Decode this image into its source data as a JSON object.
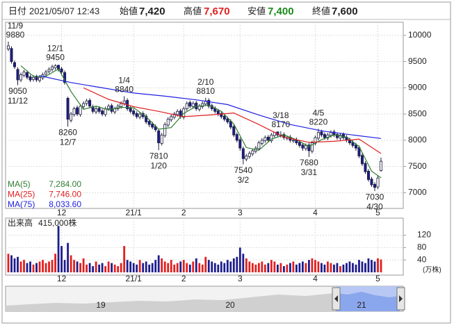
{
  "header": {
    "date_label": "日付",
    "date": "2021/05/07 12:43",
    "open_label": "始値",
    "open": "7,420",
    "high_label": "高値",
    "high": "7,670",
    "low_label": "安値",
    "low": "7,400",
    "close_label": "終値",
    "close": "7,600"
  },
  "chart_data": [
    {
      "type": "candlestick",
      "categories": [
        null,
        null,
        null,
        null,
        null,
        null,
        null,
        null,
        null,
        null,
        null,
        null,
        null,
        null,
        null,
        null,
        null,
        "12",
        null,
        null,
        null,
        null,
        null,
        null,
        null,
        null,
        null,
        null,
        null,
        null,
        null,
        null,
        null,
        null,
        null,
        null,
        null,
        null,
        null,
        null,
        "21/1",
        null,
        null,
        null,
        null,
        null,
        null,
        null,
        null,
        null,
        null,
        null,
        null,
        null,
        null,
        null,
        "2",
        null,
        null,
        null,
        null,
        null,
        null,
        null,
        null,
        null,
        null,
        null,
        null,
        null,
        null,
        null,
        null,
        null,
        "3",
        null,
        null,
        null,
        null,
        null,
        null,
        null,
        null,
        null,
        null,
        null,
        null,
        null,
        null,
        null,
        null,
        null,
        null,
        null,
        null,
        null,
        null,
        null,
        "4",
        null,
        null,
        null,
        null,
        null,
        null,
        null,
        null,
        null,
        null,
        null,
        null,
        null,
        null,
        null,
        null,
        null,
        null,
        null,
        "5",
        null
      ],
      "ohlc": {
        "open": [
          9740,
          9750,
          9480,
          9350,
          9150,
          9240,
          9290,
          9210,
          9160,
          9210,
          9140,
          9190,
          9260,
          9310,
          9350,
          9380,
          9430,
          9360,
          9290,
          8800,
          8380,
          8490,
          8620,
          8490,
          8640,
          8700,
          8760,
          8640,
          8540,
          8610,
          8560,
          8490,
          8600,
          8660,
          8540,
          8600,
          8640,
          8700,
          8760,
          8610,
          8560,
          8510,
          8440,
          8510,
          8460,
          8360,
          8310,
          8260,
          8180,
          7940,
          8090,
          8290,
          8390,
          8440,
          8490,
          8560,
          8440,
          8600,
          8720,
          8640,
          8710,
          8590,
          8640,
          8690,
          8760,
          8660,
          8610,
          8560,
          8510,
          8460,
          8410,
          8360,
          8260,
          8110,
          8010,
          7840,
          7640,
          7690,
          7740,
          7790,
          7840,
          7940,
          7990,
          8060,
          7990,
          8090,
          8160,
          8090,
          8110,
          8040,
          8060,
          7990,
          8010,
          7960,
          7910,
          7840,
          7910,
          7790,
          7940,
          8040,
          8160,
          8110,
          8040,
          8090,
          8160,
          8110,
          8040,
          8110,
          8060,
          8010,
          7960,
          7910,
          7860,
          7710,
          7560,
          7410,
          7260,
          7160,
          7110,
          7420
        ],
        "high": [
          9880,
          9790,
          9520,
          9390,
          9290,
          9340,
          9330,
          9250,
          9240,
          9250,
          9240,
          9290,
          9340,
          9390,
          9440,
          9450,
          9440,
          9400,
          9330,
          8830,
          8540,
          8640,
          8660,
          8690,
          8740,
          8790,
          8800,
          8680,
          8640,
          8650,
          8600,
          8640,
          8690,
          8700,
          8640,
          8690,
          8740,
          8840,
          8800,
          8650,
          8600,
          8550,
          8540,
          8550,
          8500,
          8400,
          8350,
          8300,
          8210,
          8140,
          8340,
          8440,
          8490,
          8540,
          8590,
          8600,
          8640,
          8740,
          8760,
          8740,
          8750,
          8690,
          8740,
          8810,
          8800,
          8700,
          8650,
          8600,
          8550,
          8500,
          8450,
          8400,
          8300,
          8150,
          8050,
          7880,
          7740,
          7790,
          7840,
          7890,
          7990,
          8040,
          8090,
          8100,
          8140,
          8160,
          8165,
          8170,
          8150,
          8090,
          8100,
          8040,
          8050,
          8000,
          7950,
          7940,
          7950,
          7990,
          8090,
          8220,
          8200,
          8150,
          8140,
          8190,
          8200,
          8150,
          8140,
          8150,
          8100,
          8050,
          8000,
          7950,
          7900,
          7750,
          7600,
          7450,
          7300,
          7200,
          7320,
          7670
        ],
        "low": [
          9700,
          9460,
          9360,
          9050,
          9110,
          9200,
          9160,
          9110,
          9120,
          9110,
          9100,
          9150,
          9220,
          9270,
          9310,
          9340,
          9310,
          9260,
          9060,
          8260,
          8340,
          8450,
          8460,
          8450,
          8600,
          8660,
          8610,
          8510,
          8500,
          8510,
          8460,
          8450,
          8560,
          8510,
          8500,
          8560,
          8600,
          8660,
          8560,
          8510,
          8460,
          8410,
          8400,
          8410,
          8310,
          8250,
          8210,
          8160,
          7810,
          7900,
          8050,
          8250,
          8350,
          8400,
          8450,
          8410,
          8400,
          8560,
          8610,
          8600,
          8560,
          8550,
          8600,
          8650,
          8610,
          8560,
          8510,
          8460,
          8410,
          8360,
          8310,
          8210,
          8060,
          7960,
          7800,
          7540,
          7600,
          7650,
          7700,
          7750,
          7800,
          7900,
          7950,
          7960,
          7950,
          8050,
          8060,
          8050,
          8010,
          8000,
          7960,
          7950,
          7910,
          7860,
          7800,
          7800,
          7680,
          7750,
          7900,
          8000,
          8060,
          8010,
          8000,
          8050,
          8060,
          8010,
          8000,
          8010,
          7960,
          7910,
          7860,
          7800,
          7660,
          7510,
          7360,
          7210,
          7110,
          7030,
          7070,
          7400
        ],
        "close": [
          9800,
          9500,
          9400,
          9150,
          9250,
          9300,
          9200,
          9150,
          9200,
          9150,
          9200,
          9250,
          9300,
          9350,
          9400,
          9420,
          9350,
          9300,
          9100,
          8400,
          8500,
          8600,
          8500,
          8650,
          8700,
          8750,
          8650,
          8550,
          8600,
          8550,
          8500,
          8600,
          8650,
          8550,
          8600,
          8650,
          8700,
          8750,
          8600,
          8550,
          8500,
          8450,
          8500,
          8450,
          8350,
          8300,
          8250,
          8200,
          7950,
          8100,
          8300,
          8400,
          8450,
          8500,
          8550,
          8450,
          8600,
          8700,
          8650,
          8700,
          8600,
          8650,
          8700,
          8750,
          8650,
          8600,
          8550,
          8500,
          8450,
          8400,
          8350,
          8250,
          8100,
          8000,
          7850,
          7650,
          7700,
          7750,
          7800,
          7850,
          7950,
          8000,
          8050,
          8000,
          8100,
          8150,
          8100,
          8100,
          8050,
          8050,
          8000,
          8000,
          7950,
          7900,
          7850,
          7900,
          7800,
          7950,
          8050,
          8150,
          8100,
          8050,
          8100,
          8150,
          8100,
          8050,
          8100,
          8050,
          8000,
          7950,
          7900,
          7850,
          7700,
          7550,
          7400,
          7250,
          7150,
          7100,
          7280,
          7600
        ]
      },
      "up_color": "#ffffff",
      "down_color": "#1c1c8c",
      "series": [
        {
          "name": "MA(5)",
          "color": "#2e7d32",
          "x": [
            4,
            8,
            12,
            16,
            20,
            24,
            28,
            32,
            36,
            40,
            44,
            48,
            52,
            56,
            60,
            64,
            68,
            72,
            76,
            80,
            84,
            88,
            92,
            96,
            100,
            104,
            108,
            112,
            116,
            119
          ],
          "values": [
            9420,
            9220,
            9220,
            9360,
            8930,
            8590,
            8650,
            8580,
            8630,
            8620,
            8450,
            8210,
            8240,
            8510,
            8650,
            8670,
            8550,
            8310,
            7860,
            7810,
            8020,
            8100,
            8010,
            7880,
            8010,
            8100,
            8060,
            7880,
            7410,
            7284
          ],
          "value_labels": [
            null,
            null,
            null,
            null,
            null,
            null,
            null,
            null,
            null,
            null,
            null,
            null,
            null,
            null,
            null,
            null,
            null,
            null,
            null,
            null,
            null,
            null,
            null,
            null,
            null,
            null,
            null,
            null,
            null,
            "7,284.00"
          ]
        },
        {
          "name": "MA(25)",
          "color": "#e02020",
          "x": [
            24,
            32,
            40,
            48,
            56,
            64,
            72,
            80,
            88,
            96,
            104,
            112,
            119
          ],
          "values": [
            9000,
            8780,
            8640,
            8550,
            8450,
            8480,
            8520,
            8300,
            8060,
            7960,
            7980,
            8020,
            7746
          ],
          "value_labels": [
            null,
            null,
            null,
            null,
            null,
            null,
            null,
            null,
            null,
            null,
            null,
            null,
            "7,746.00"
          ]
        },
        {
          "name": "MA(75)",
          "color": "#2020e0",
          "x": [
            10,
            20,
            30,
            40,
            50,
            60,
            70,
            80,
            90,
            100,
            110,
            119
          ],
          "values": [
            9230,
            9100,
            9000,
            8900,
            8840,
            8770,
            8680,
            8480,
            8300,
            8180,
            8100,
            8033.6
          ],
          "value_labels": [
            null,
            null,
            null,
            null,
            null,
            null,
            null,
            null,
            null,
            null,
            null,
            "8,033.60"
          ]
        }
      ],
      "annotations": [
        {
          "date": "11/9",
          "value": 9880
        },
        {
          "date": "11/12",
          "value": 9050
        },
        {
          "date": "12/1",
          "value": 9450
        },
        {
          "date": "12/7",
          "value": 8260
        },
        {
          "date": "1/4",
          "value": 8840
        },
        {
          "date": "1/20",
          "value": 7810
        },
        {
          "date": "2/10",
          "value": 8810
        },
        {
          "date": "3/2",
          "value": 7540
        },
        {
          "date": "3/18",
          "value": 8170
        },
        {
          "date": "3/31",
          "value": 7680
        },
        {
          "date": "4/5",
          "value": 8220
        },
        {
          "date": "4/30",
          "value": 7030
        }
      ],
      "ylim": [
        6700,
        10250
      ],
      "yticks": [
        7000,
        7500,
        8000,
        8500,
        9000,
        9500,
        10000
      ],
      "grid": true
    },
    {
      "type": "bar",
      "title": "出来高",
      "unit": "(万株)",
      "categories": [
        null,
        null,
        null,
        null,
        null,
        null,
        null,
        null,
        null,
        null,
        null,
        null,
        null,
        null,
        null,
        null,
        null,
        "12",
        null,
        null,
        null,
        null,
        null,
        null,
        null,
        null,
        null,
        null,
        null,
        null,
        null,
        null,
        null,
        null,
        null,
        null,
        null,
        null,
        null,
        null,
        "21/1",
        null,
        null,
        null,
        null,
        null,
        null,
        null,
        null,
        null,
        null,
        null,
        null,
        null,
        null,
        null,
        "2",
        null,
        null,
        null,
        null,
        null,
        null,
        null,
        null,
        null,
        null,
        null,
        null,
        null,
        null,
        null,
        null,
        null,
        "3",
        null,
        null,
        null,
        null,
        null,
        null,
        null,
        null,
        null,
        null,
        null,
        null,
        null,
        null,
        null,
        null,
        null,
        null,
        null,
        null,
        null,
        null,
        null,
        "4",
        null,
        null,
        null,
        null,
        null,
        null,
        null,
        null,
        null,
        null,
        null,
        null,
        null,
        null,
        null,
        null,
        null,
        null,
        null,
        "5",
        null
      ],
      "values": [
        60,
        55,
        45,
        50,
        35,
        40,
        30,
        35,
        25,
        30,
        35,
        40,
        30,
        35,
        40,
        60,
        150,
        85,
        40,
        95,
        55,
        40,
        35,
        30,
        45,
        25,
        30,
        20,
        35,
        25,
        30,
        20,
        35,
        30,
        25,
        20,
        30,
        85,
        40,
        35,
        30,
        25,
        40,
        30,
        35,
        25,
        30,
        40,
        55,
        45,
        35,
        30,
        40,
        25,
        30,
        35,
        40,
        30,
        25,
        35,
        45,
        30,
        25,
        50,
        40,
        35,
        30,
        25,
        35,
        30,
        40,
        35,
        45,
        50,
        80,
        60,
        45,
        35,
        30,
        25,
        30,
        35,
        25,
        30,
        40,
        35,
        25,
        30,
        20,
        25,
        30,
        35,
        25,
        30,
        35,
        30,
        40,
        45,
        40,
        35,
        30,
        25,
        35,
        30,
        25,
        30,
        20,
        25,
        30,
        35,
        30,
        25,
        40,
        35,
        30,
        45,
        40,
        35,
        45,
        41.5
      ],
      "value_labels": [
        null,
        null,
        null,
        null,
        null,
        null,
        null,
        null,
        null,
        null,
        null,
        null,
        null,
        null,
        null,
        null,
        null,
        null,
        null,
        null,
        null,
        null,
        null,
        null,
        null,
        null,
        null,
        null,
        null,
        null,
        null,
        null,
        null,
        null,
        null,
        null,
        null,
        null,
        null,
        null,
        null,
        null,
        null,
        null,
        null,
        null,
        null,
        null,
        null,
        null,
        null,
        null,
        null,
        null,
        null,
        null,
        null,
        null,
        null,
        null,
        null,
        null,
        null,
        null,
        null,
        null,
        null,
        null,
        null,
        null,
        null,
        null,
        null,
        null,
        null,
        null,
        null,
        null,
        null,
        null,
        null,
        null,
        null,
        null,
        null,
        null,
        null,
        null,
        null,
        null,
        null,
        null,
        null,
        null,
        null,
        null,
        null,
        null,
        null,
        null,
        null,
        null,
        null,
        null,
        null,
        null,
        null,
        null,
        null,
        null,
        null,
        null,
        null,
        null,
        null,
        null,
        null,
        null,
        null,
        "415,000株"
      ],
      "up_color": "#e0201e",
      "down_color": "#1c1c8c",
      "ylim": [
        0,
        175
      ],
      "yticks": [
        40,
        80,
        120
      ],
      "grid": true
    }
  ],
  "navigator": {
    "labels": [
      "19",
      "20",
      "21"
    ]
  }
}
